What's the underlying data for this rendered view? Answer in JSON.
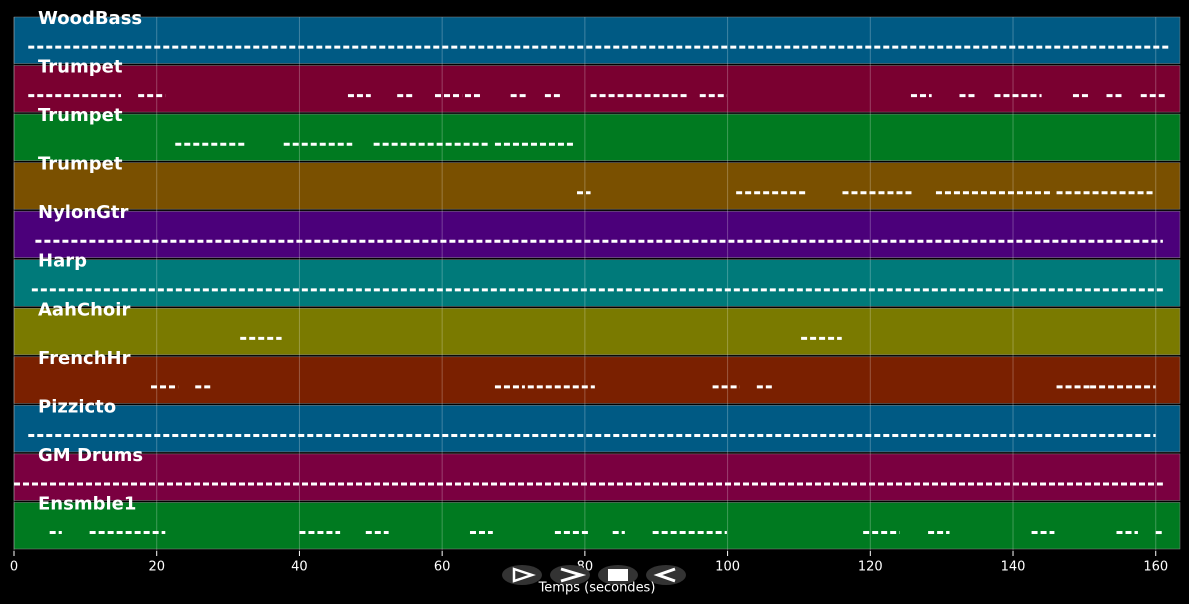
{
  "chart_data": {
    "type": "timeline",
    "x_label": "Temps (secondes)",
    "xlim": [
      0,
      163.4
    ],
    "xticks": [
      0,
      20,
      40,
      60,
      80,
      100,
      120,
      140,
      160
    ],
    "grid": true,
    "tracks": [
      {
        "name": "WoodBass",
        "color": "#005a84",
        "notes": [
          [
            2,
            162
          ]
        ]
      },
      {
        "name": "Trumpet",
        "color": "#7a0030",
        "notes": [
          [
            2,
            15
          ],
          [
            17.4,
            21.2
          ],
          [
            46.8,
            50
          ],
          [
            53.7,
            55.9
          ],
          [
            59,
            62.8
          ],
          [
            63.2,
            65.3
          ],
          [
            69.6,
            71.7
          ],
          [
            74.4,
            76.5
          ],
          [
            80.8,
            94.6
          ],
          [
            96.1,
            99.9
          ],
          [
            125.7,
            128.6
          ],
          [
            132.5,
            134.6
          ],
          [
            137.4,
            144
          ],
          [
            148.4,
            150.8
          ],
          [
            153.1,
            155.2
          ],
          [
            157.9,
            161.4
          ]
        ]
      },
      {
        "name": "Trumpet",
        "color": "#007a20",
        "notes": [
          [
            22.6,
            32.4
          ],
          [
            37.8,
            47.4
          ],
          [
            50.4,
            66.4
          ],
          [
            67.4,
            78.6
          ]
        ]
      },
      {
        "name": "Trumpet",
        "color": "#7a5000",
        "notes": [
          [
            78.9,
            80.8
          ],
          [
            101.2,
            111
          ],
          [
            116.1,
            126
          ],
          [
            129.2,
            145.2
          ],
          [
            146.1,
            159.7
          ]
        ]
      },
      {
        "name": "NylonGtr",
        "color": "#4b007a",
        "notes": [
          [
            3,
            161
          ]
        ]
      },
      {
        "name": "Harp",
        "color": "#007a7a",
        "notes": [
          [
            2.5,
            161
          ]
        ]
      },
      {
        "name": "AahChoir",
        "color": "#7a7a00",
        "notes": [
          [
            31.7,
            37.5
          ],
          [
            110.3,
            116
          ]
        ]
      },
      {
        "name": "FrenchHr",
        "color": "#7a2000",
        "notes": [
          [
            19.2,
            23
          ],
          [
            25.4,
            27.5
          ],
          [
            67.4,
            71.6
          ],
          [
            72,
            81.4
          ],
          [
            97.9,
            101.7
          ],
          [
            104.1,
            106.3
          ],
          [
            146.1,
            150.8
          ],
          [
            150.8,
            160
          ]
        ]
      },
      {
        "name": "Pizzicto",
        "color": "#005a84",
        "notes": [
          [
            2,
            160
          ]
        ]
      },
      {
        "name": "GM Drums",
        "color": "#7a0040",
        "notes": [
          [
            0,
            161
          ]
        ]
      },
      {
        "name": "Ensmble1",
        "color": "#007a20",
        "notes": [
          [
            5,
            6.7
          ],
          [
            10.6,
            21.2
          ],
          [
            40,
            45.7
          ],
          [
            49.3,
            52.5
          ],
          [
            63.9,
            67.1
          ],
          [
            75.8,
            80.8
          ],
          [
            83.9,
            85.6
          ],
          [
            89.5,
            99.9
          ],
          [
            119,
            124.1
          ],
          [
            128.1,
            131.1
          ],
          [
            142.6,
            145.8
          ],
          [
            154.5,
            157.5
          ],
          [
            160,
            161.1
          ]
        ]
      }
    ]
  }
}
